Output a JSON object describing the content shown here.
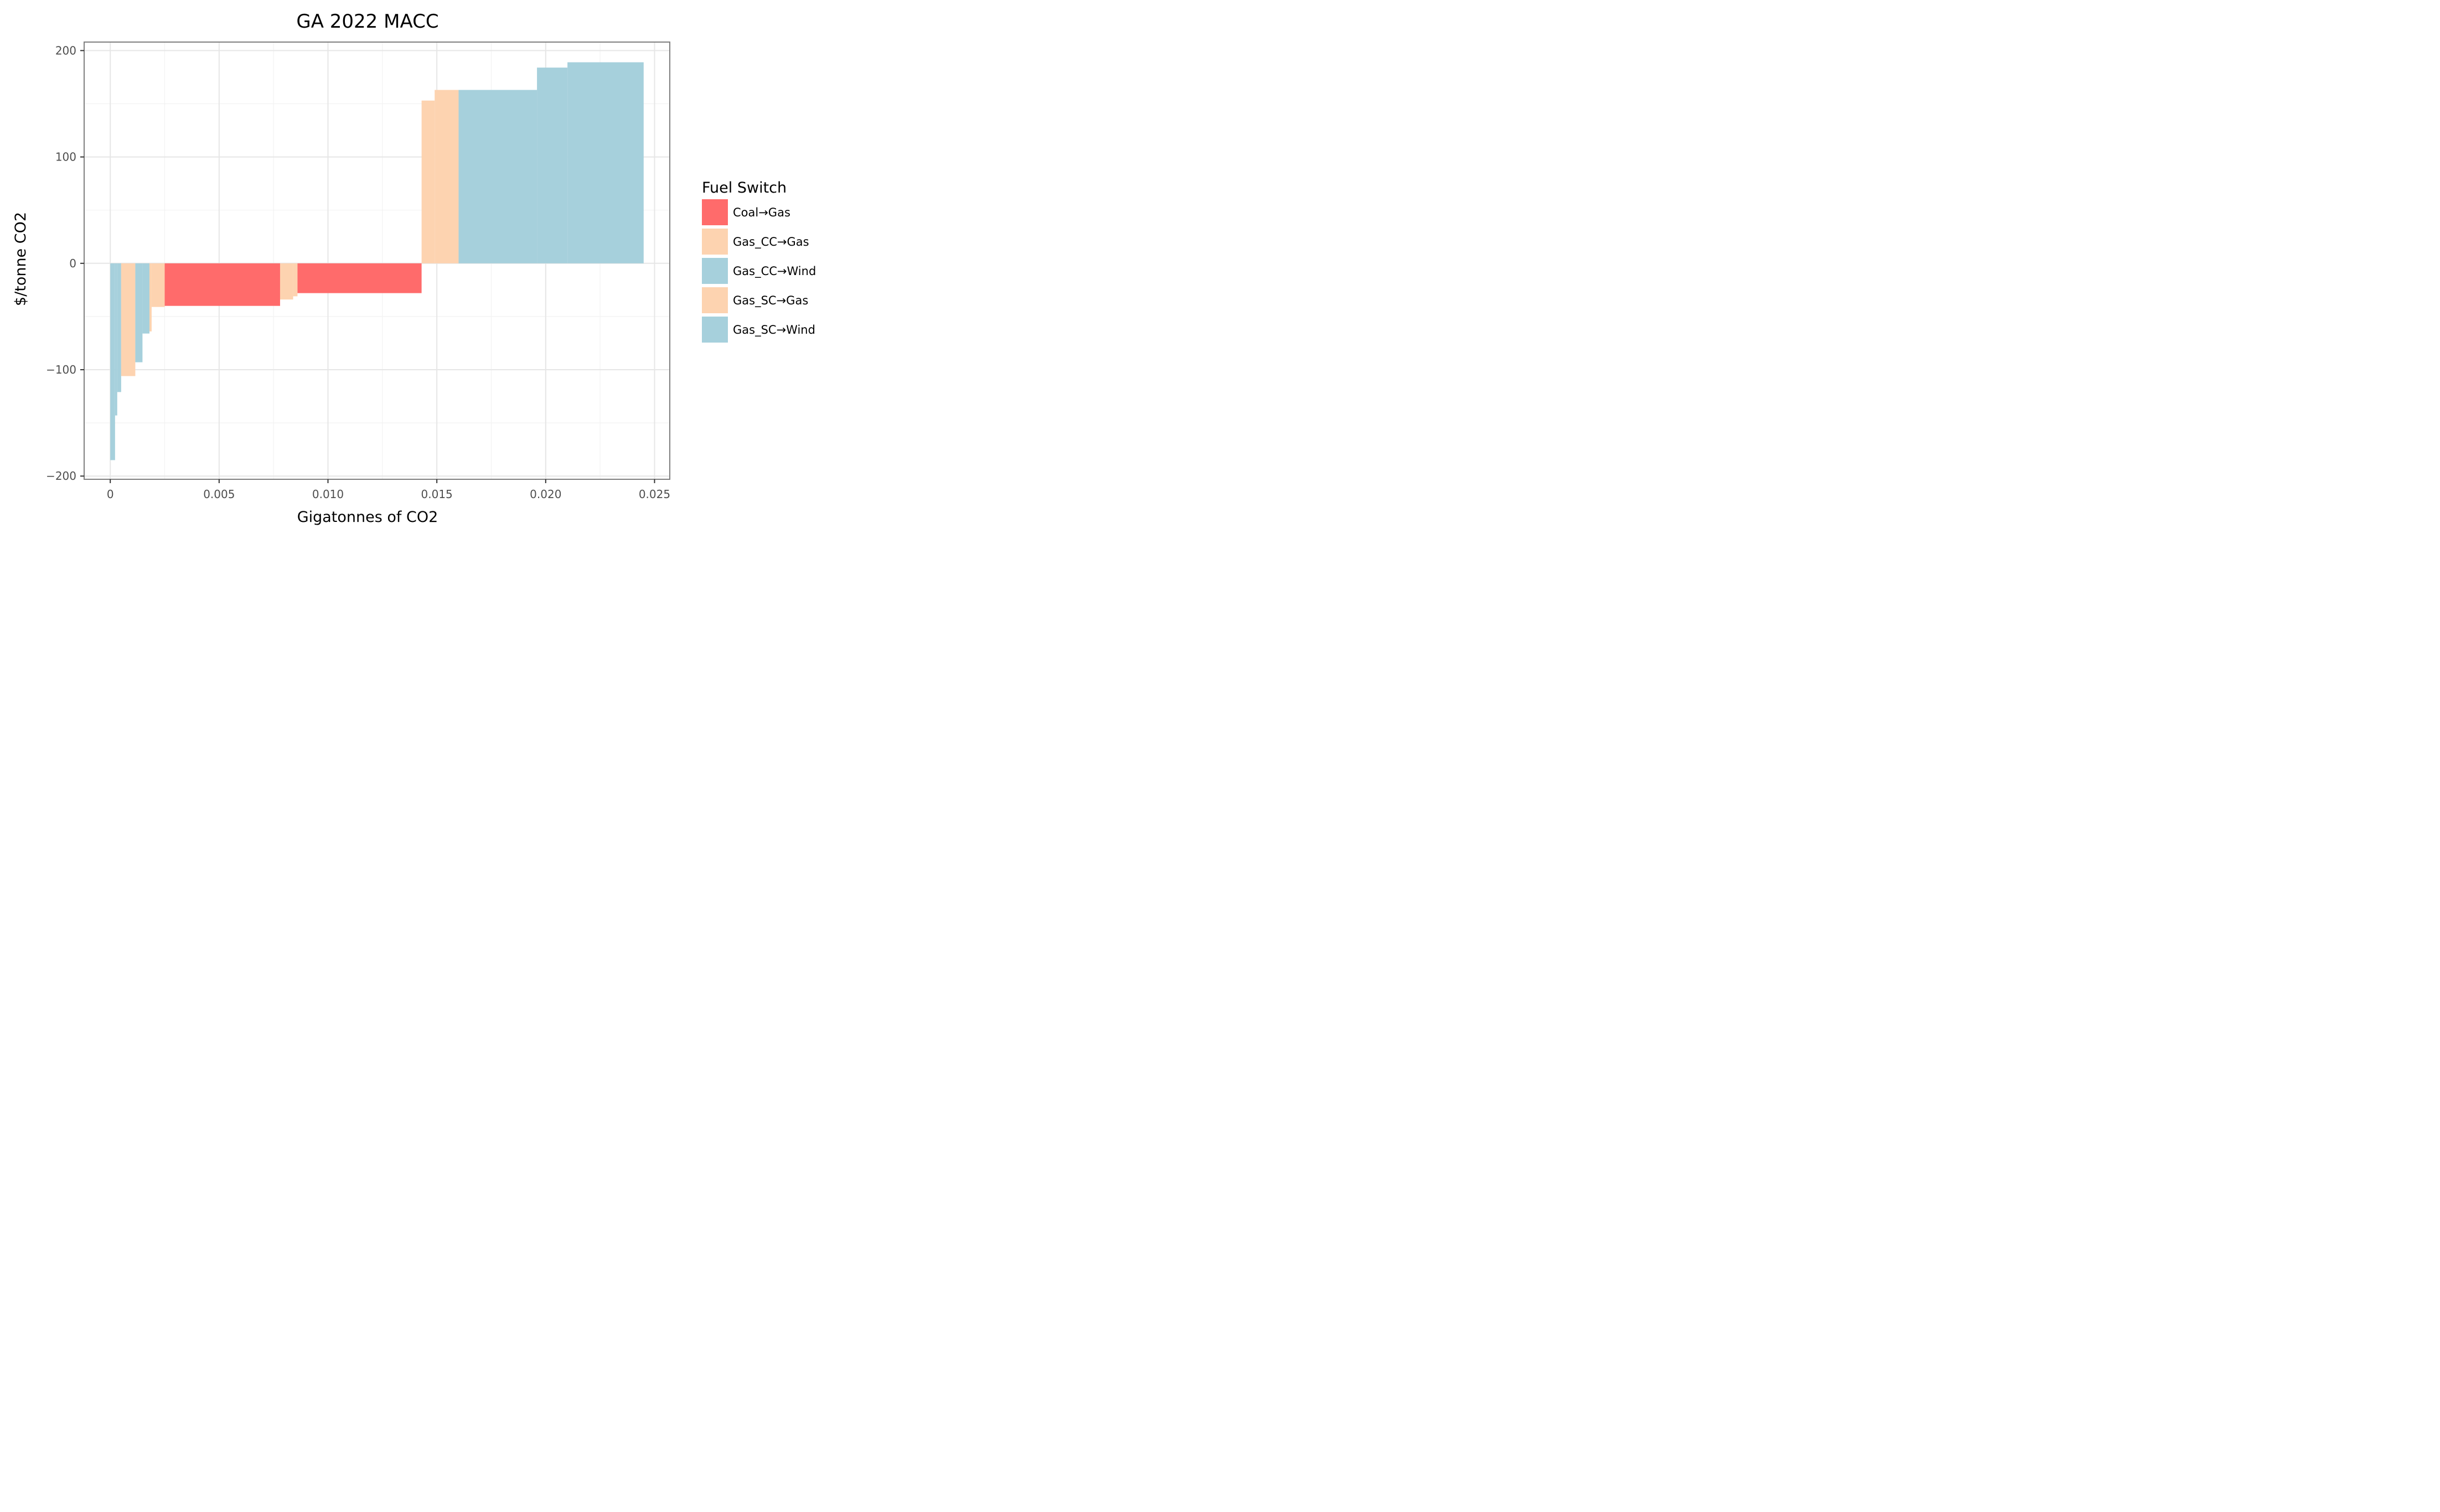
{
  "chart_data": {
    "type": "bar",
    "title": "GA 2022 MACC",
    "xlabel": "Gigatonnes of CO2",
    "ylabel": "$/tonne CO2",
    "xlim": [
      -0.0012,
      0.0257
    ],
    "ylim": [
      -203,
      208
    ],
    "x_ticks": [
      0,
      0.005,
      0.01,
      0.015,
      0.02,
      0.025
    ],
    "x_tick_labels": [
      "0",
      "0.005",
      "0.010",
      "0.015",
      "0.020",
      "0.025"
    ],
    "y_ticks": [
      -200,
      -100,
      0,
      100,
      200
    ],
    "y_tick_labels": [
      "−200",
      "−100",
      "0",
      "100",
      "200"
    ],
    "grid": true,
    "legend": {
      "title": "Fuel Switch",
      "position": "right",
      "items": [
        {
          "label": "Coal→Gas",
          "color": "#ff6b6b"
        },
        {
          "label": "Gas_CC→Gas",
          "color": "#fdd3b0"
        },
        {
          "label": "Gas_CC→Wind",
          "color": "#a6d0dc"
        },
        {
          "label": "Gas_SC→Gas",
          "color": "#fdd3b0"
        },
        {
          "label": "Gas_SC→Wind",
          "color": "#a6d0dc"
        }
      ]
    },
    "bars": [
      {
        "x0": 0.0,
        "x1": 0.00022,
        "value": -185,
        "category": "Gas_SC→Wind"
      },
      {
        "x0": 0.00022,
        "x1": 0.00032,
        "value": -143,
        "category": "Gas_SC→Wind"
      },
      {
        "x0": 0.00032,
        "x1": 0.0005,
        "value": -121,
        "category": "Gas_SC→Wind"
      },
      {
        "x0": 0.0005,
        "x1": 0.00115,
        "value": -106,
        "category": "Gas_SC→Gas"
      },
      {
        "x0": 0.00115,
        "x1": 0.00148,
        "value": -93,
        "category": "Gas_SC→Wind"
      },
      {
        "x0": 0.00148,
        "x1": 0.0018,
        "value": -66,
        "category": "Gas_SC→Wind"
      },
      {
        "x0": 0.0018,
        "x1": 0.0019,
        "value": -64,
        "category": "Gas_SC→Gas"
      },
      {
        "x0": 0.0019,
        "x1": 0.0025,
        "value": -41,
        "category": "Gas_SC→Gas"
      },
      {
        "x0": 0.0025,
        "x1": 0.0078,
        "value": -40,
        "category": "Coal→Gas"
      },
      {
        "x0": 0.0078,
        "x1": 0.0084,
        "value": -34,
        "category": "Gas_CC→Gas"
      },
      {
        "x0": 0.0084,
        "x1": 0.0086,
        "value": -31,
        "category": "Gas_CC→Gas"
      },
      {
        "x0": 0.0086,
        "x1": 0.0143,
        "value": -28,
        "category": "Coal→Gas"
      },
      {
        "x0": 0.0143,
        "x1": 0.0149,
        "value": 153,
        "category": "Gas_CC→Gas"
      },
      {
        "x0": 0.0149,
        "x1": 0.016,
        "value": 163,
        "category": "Gas_CC→Gas"
      },
      {
        "x0": 0.016,
        "x1": 0.0196,
        "value": 163,
        "category": "Gas_CC→Wind"
      },
      {
        "x0": 0.0196,
        "x1": 0.021,
        "value": 184,
        "category": "Gas_CC→Wind"
      },
      {
        "x0": 0.021,
        "x1": 0.0245,
        "value": 189,
        "category": "Gas_CC→Wind"
      }
    ]
  }
}
